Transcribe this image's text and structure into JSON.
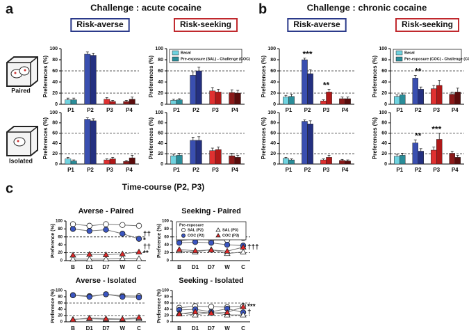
{
  "figure": {
    "panel_labels": [
      "a",
      "b",
      "c"
    ],
    "headings": [
      "Challenge : acute cocaine",
      "Challenge : chronic cocaine",
      "Time-course (P2, P3)"
    ],
    "conditions": [
      "Paired",
      "Isolated"
    ]
  },
  "chart_data": [
    {
      "type": "bar",
      "title": "Risk-averse",
      "title_color": "#2b3a8a",
      "ylabel": "Preferences (%)",
      "categories": [
        "P1",
        "P2",
        "P3",
        "P4"
      ],
      "ylim": [
        0,
        100
      ],
      "yticks": [
        0,
        20,
        40,
        60,
        80,
        100
      ],
      "reference_lines": [
        20,
        60
      ],
      "legend": false,
      "series": [
        {
          "name": "Basal",
          "color": "#6fd3e0",
          "colors": [
            "#6fd3e0",
            "#3a4fb0",
            "#e03030",
            "#8b1a1a"
          ],
          "values": [
            8,
            90,
            9,
            5
          ],
          "errors": [
            3,
            4,
            3,
            2
          ]
        },
        {
          "name": "Pre-exposure (SAL) - Challenge (COC)",
          "color": "#2a8d99",
          "colors": [
            "#2a8d99",
            "#243080",
            "#b01818",
            "#5a0c0c"
          ],
          "values": [
            8,
            88,
            5,
            9
          ],
          "errors": [
            3,
            4,
            2,
            4
          ]
        }
      ]
    },
    {
      "type": "bar",
      "title": "Risk-seeking",
      "title_color": "#c0282d",
      "ylabel": "Preferences (%)",
      "categories": [
        "P1",
        "P2",
        "P3",
        "P4"
      ],
      "ylim": [
        0,
        100
      ],
      "yticks": [
        0,
        20,
        40,
        60,
        80,
        100
      ],
      "reference_lines": [
        20,
        60
      ],
      "legend": true,
      "series": [
        {
          "name": "Basal",
          "color": "#6fd3e0",
          "colors": [
            "#6fd3e0",
            "#3a4fb0",
            "#e03030",
            "#8b1a1a"
          ],
          "values": [
            7,
            52,
            24,
            21
          ],
          "errors": [
            2,
            6,
            6,
            5
          ]
        },
        {
          "name": "Pre-exposure (SAL) - Challenge (COC)",
          "color": "#2a8d99",
          "colors": [
            "#2a8d99",
            "#243080",
            "#b01818",
            "#5a0c0c"
          ],
          "values": [
            8,
            60,
            22,
            20
          ],
          "errors": [
            2,
            7,
            5,
            5
          ]
        }
      ]
    },
    {
      "type": "bar",
      "ylabel": "Preferences (%)",
      "categories": [
        "P1",
        "P2",
        "P3",
        "P4"
      ],
      "ylim": [
        0,
        100
      ],
      "yticks": [
        0,
        20,
        40,
        60,
        80,
        100
      ],
      "reference_lines": [
        20,
        60
      ],
      "legend": false,
      "series": [
        {
          "name": "Basal",
          "color": "#6fd3e0",
          "colors": [
            "#6fd3e0",
            "#3a4fb0",
            "#e03030",
            "#8b1a1a"
          ],
          "values": [
            10,
            87,
            8,
            5
          ],
          "errors": [
            3,
            3,
            2,
            2
          ]
        },
        {
          "name": "Pre-exposure (SAL) - Challenge (COC)",
          "color": "#2a8d99",
          "colors": [
            "#2a8d99",
            "#243080",
            "#b01818",
            "#5a0c0c"
          ],
          "values": [
            6,
            84,
            10,
            12
          ],
          "errors": [
            2,
            4,
            3,
            5
          ]
        }
      ]
    },
    {
      "type": "bar",
      "ylabel": "Preferences (%)",
      "categories": [
        "P1",
        "P2",
        "P3",
        "P4"
      ],
      "ylim": [
        0,
        100
      ],
      "yticks": [
        0,
        20,
        40,
        60,
        80,
        100
      ],
      "reference_lines": [
        20,
        60
      ],
      "legend": false,
      "series": [
        {
          "name": "Basal",
          "color": "#6fd3e0",
          "colors": [
            "#6fd3e0",
            "#3a4fb0",
            "#e03030",
            "#8b1a1a"
          ],
          "values": [
            16,
            46,
            26,
            16
          ],
          "errors": [
            3,
            6,
            5,
            5
          ]
        },
        {
          "name": "Pre-exposure (SAL) - Challenge (COC)",
          "color": "#2a8d99",
          "colors": [
            "#2a8d99",
            "#243080",
            "#b01818",
            "#5a0c0c"
          ],
          "values": [
            17,
            46,
            28,
            13
          ],
          "errors": [
            4,
            7,
            5,
            4
          ]
        }
      ]
    },
    {
      "type": "bar",
      "title": "Risk-averse",
      "title_color": "#2b3a8a",
      "ylabel": "Preferences (%)",
      "categories": [
        "P1",
        "P2",
        "P3",
        "P4"
      ],
      "ylim": [
        0,
        100
      ],
      "yticks": [
        0,
        20,
        40,
        60,
        80,
        100
      ],
      "reference_lines": [
        20,
        60
      ],
      "legend": false,
      "annotations": [
        null,
        "***",
        "**",
        null
      ],
      "series": [
        {
          "name": "Basal",
          "color": "#6fd3e0",
          "colors": [
            "#6fd3e0",
            "#3a4fb0",
            "#e03030",
            "#8b1a1a"
          ],
          "values": [
            13,
            80,
            6,
            10
          ],
          "errors": [
            3,
            3,
            2,
            3
          ]
        },
        {
          "name": "Pre-exposure (COC) - Challenge (COC)",
          "color": "#2a8d99",
          "colors": [
            "#2a8d99",
            "#243080",
            "#b01818",
            "#5a0c0c"
          ],
          "values": [
            14,
            55,
            22,
            10
          ],
          "errors": [
            4,
            7,
            5,
            3
          ]
        }
      ]
    },
    {
      "type": "bar",
      "title": "Risk-seeking",
      "title_color": "#c0282d",
      "ylabel": "Preferences (%)",
      "categories": [
        "P1",
        "P2",
        "P3",
        "P4"
      ],
      "ylim": [
        0,
        100
      ],
      "yticks": [
        0,
        20,
        40,
        60,
        80,
        100
      ],
      "reference_lines": [
        20,
        60
      ],
      "legend": true,
      "annotations": [
        null,
        "**",
        null,
        null
      ],
      "series": [
        {
          "name": "Basal",
          "color": "#6fd3e0",
          "colors": [
            "#6fd3e0",
            "#3a4fb0",
            "#e03030",
            "#8b1a1a"
          ],
          "values": [
            14,
            47,
            28,
            18
          ],
          "errors": [
            3,
            5,
            6,
            4
          ]
        },
        {
          "name": "Pre-exposure (COC) - Challenge (COC)",
          "color": "#2a8d99",
          "colors": [
            "#2a8d99",
            "#243080",
            "#b01818",
            "#5a0c0c"
          ],
          "values": [
            17,
            27,
            34,
            22
          ],
          "errors": [
            3,
            4,
            9,
            7
          ]
        }
      ]
    },
    {
      "type": "bar",
      "ylabel": "Preferences (%)",
      "categories": [
        "P1",
        "P2",
        "P3",
        "P4"
      ],
      "ylim": [
        0,
        100
      ],
      "yticks": [
        0,
        20,
        40,
        60,
        80,
        100
      ],
      "reference_lines": [
        20,
        60
      ],
      "legend": false,
      "series": [
        {
          "name": "Basal",
          "color": "#6fd3e0",
          "colors": [
            "#6fd3e0",
            "#3a4fb0",
            "#e03030",
            "#8b1a1a"
          ],
          "values": [
            11,
            83,
            8,
            7
          ],
          "errors": [
            2,
            3,
            2,
            2
          ]
        },
        {
          "name": "Pre-exposure (COC) - Challenge (COC)",
          "color": "#2a8d99",
          "colors": [
            "#2a8d99",
            "#243080",
            "#b01818",
            "#5a0c0c"
          ],
          "values": [
            8,
            78,
            13,
            6
          ],
          "errors": [
            2,
            6,
            4,
            2
          ]
        }
      ]
    },
    {
      "type": "bar",
      "ylabel": "Preferences (%)",
      "categories": [
        "P1",
        "P2",
        "P3",
        "P4"
      ],
      "ylim": [
        0,
        100
      ],
      "yticks": [
        0,
        20,
        40,
        60,
        80,
        100
      ],
      "reference_lines": [
        20,
        60
      ],
      "legend": false,
      "annotations": [
        null,
        "**",
        "***",
        null
      ],
      "series": [
        {
          "name": "Basal",
          "color": "#6fd3e0",
          "colors": [
            "#6fd3e0",
            "#3a4fb0",
            "#e03030",
            "#8b1a1a"
          ],
          "values": [
            15,
            41,
            27,
            21
          ],
          "errors": [
            4,
            6,
            6,
            4
          ]
        },
        {
          "name": "Pre-exposure (COC) - Challenge (COC)",
          "color": "#2a8d99",
          "colors": [
            "#2a8d99",
            "#243080",
            "#b01818",
            "#5a0c0c"
          ],
          "values": [
            17,
            25,
            48,
            13
          ],
          "errors": [
            4,
            5,
            12,
            4
          ]
        }
      ]
    },
    {
      "type": "line",
      "title": "Averse - Paired",
      "ylabel": "Preference (%)",
      "categories": [
        "B",
        "D1",
        "D7",
        "W",
        "C"
      ],
      "ylim": [
        0,
        100
      ],
      "yticks": [
        0,
        20,
        40,
        60,
        80,
        100
      ],
      "reference_lines": [
        20,
        60
      ],
      "legend": false,
      "series": [
        {
          "name": "SAL (P2)",
          "color": "#ffffff",
          "marker": "circle",
          "values": [
            92,
            88,
            92,
            90,
            88
          ]
        },
        {
          "name": "COC (P2)",
          "color": "#3a55c0",
          "marker": "circle",
          "values": [
            80,
            75,
            78,
            68,
            55
          ],
          "notes": [
            "††",
            "*"
          ]
        },
        {
          "name": "SAL (P3)",
          "color": "#ffffff",
          "marker": "triangle",
          "values": [
            4,
            4,
            4,
            6,
            5
          ]
        },
        {
          "name": "COC (P3)",
          "color": "#e02828",
          "marker": "triangle",
          "values": [
            14,
            16,
            15,
            17,
            22
          ],
          "notes": [
            "††",
            "**"
          ]
        }
      ]
    },
    {
      "type": "line",
      "title": "Seeking - Paired",
      "ylabel": "Preference (%)",
      "categories": [
        "B",
        "D1",
        "D7",
        "W",
        "C"
      ],
      "ylim": [
        0,
        100
      ],
      "yticks": [
        0,
        20,
        40,
        60,
        80,
        100
      ],
      "reference_lines": [
        20,
        60
      ],
      "legend": true,
      "legend_title": "Pre-exposure",
      "series": [
        {
          "name": "SAL (P2)",
          "color": "#ffffff",
          "marker": "circle",
          "values": [
            50,
            55,
            52,
            52,
            57
          ]
        },
        {
          "name": "COC (P2)",
          "color": "#3a55c0",
          "marker": "circle",
          "values": [
            45,
            47,
            45,
            40,
            38
          ]
        },
        {
          "name": "SAL (P3)",
          "color": "#ffffff",
          "marker": "triangle",
          "values": [
            25,
            22,
            28,
            18,
            22
          ]
        },
        {
          "name": "COC (P3)",
          "color": "#e02828",
          "marker": "triangle",
          "values": [
            28,
            25,
            27,
            24,
            34
          ],
          "notes": [
            "†††"
          ]
        }
      ]
    },
    {
      "type": "line",
      "title": "Averse - Isolated",
      "ylabel": "Preference (%)",
      "categories": [
        "B",
        "D1",
        "D7",
        "W",
        "C"
      ],
      "ylim": [
        0,
        100
      ],
      "yticks": [
        0,
        20,
        40,
        60,
        80,
        100
      ],
      "reference_lines": [
        20,
        60
      ],
      "legend": false,
      "series": [
        {
          "name": "SAL (P2)",
          "color": "#ffffff",
          "marker": "circle",
          "values": [
            85,
            82,
            88,
            83,
            82
          ]
        },
        {
          "name": "COC (P2)",
          "color": "#3a55c0",
          "marker": "circle",
          "values": [
            85,
            80,
            88,
            80,
            78
          ]
        },
        {
          "name": "SAL (P3)",
          "color": "#ffffff",
          "marker": "triangle",
          "values": [
            8,
            10,
            8,
            8,
            10
          ]
        },
        {
          "name": "COC (P3)",
          "color": "#e02828",
          "marker": "triangle",
          "values": [
            7,
            12,
            10,
            9,
            14
          ]
        }
      ]
    },
    {
      "type": "line",
      "title": "Seeking - Isolated",
      "ylabel": "Preference (%)",
      "categories": [
        "B",
        "D1",
        "D7",
        "W",
        "C"
      ],
      "ylim": [
        0,
        100
      ],
      "yticks": [
        0,
        20,
        40,
        60,
        80,
        100
      ],
      "reference_lines": [
        20,
        60
      ],
      "legend": false,
      "series": [
        {
          "name": "SAL (P2)",
          "color": "#ffffff",
          "marker": "circle",
          "values": [
            45,
            50,
            48,
            47,
            50
          ]
        },
        {
          "name": "COC (P2)",
          "color": "#3a55c0",
          "marker": "circle",
          "values": [
            38,
            40,
            32,
            42,
            30
          ],
          "notes": [
            "†"
          ]
        },
        {
          "name": "SAL (P3)",
          "color": "#ffffff",
          "marker": "triangle",
          "values": [
            28,
            22,
            30,
            22,
            22
          ]
        },
        {
          "name": "COC (P3)",
          "color": "#e02828",
          "marker": "triangle",
          "values": [
            25,
            32,
            28,
            30,
            48
          ],
          "notes": [
            "***"
          ]
        }
      ]
    }
  ]
}
